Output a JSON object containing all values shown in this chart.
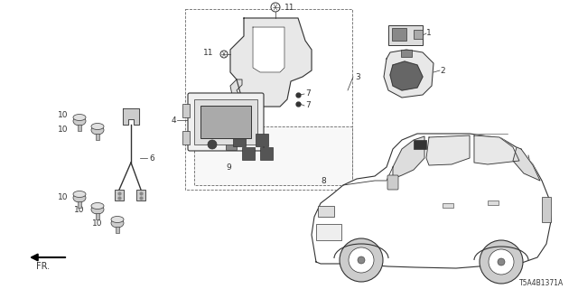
{
  "diagram_code": "T5A4B1371A",
  "background_color": "#ffffff",
  "fig_width": 6.4,
  "fig_height": 3.2,
  "dpi": 100,
  "line_color": "#333333",
  "label_fontsize": 6.5
}
